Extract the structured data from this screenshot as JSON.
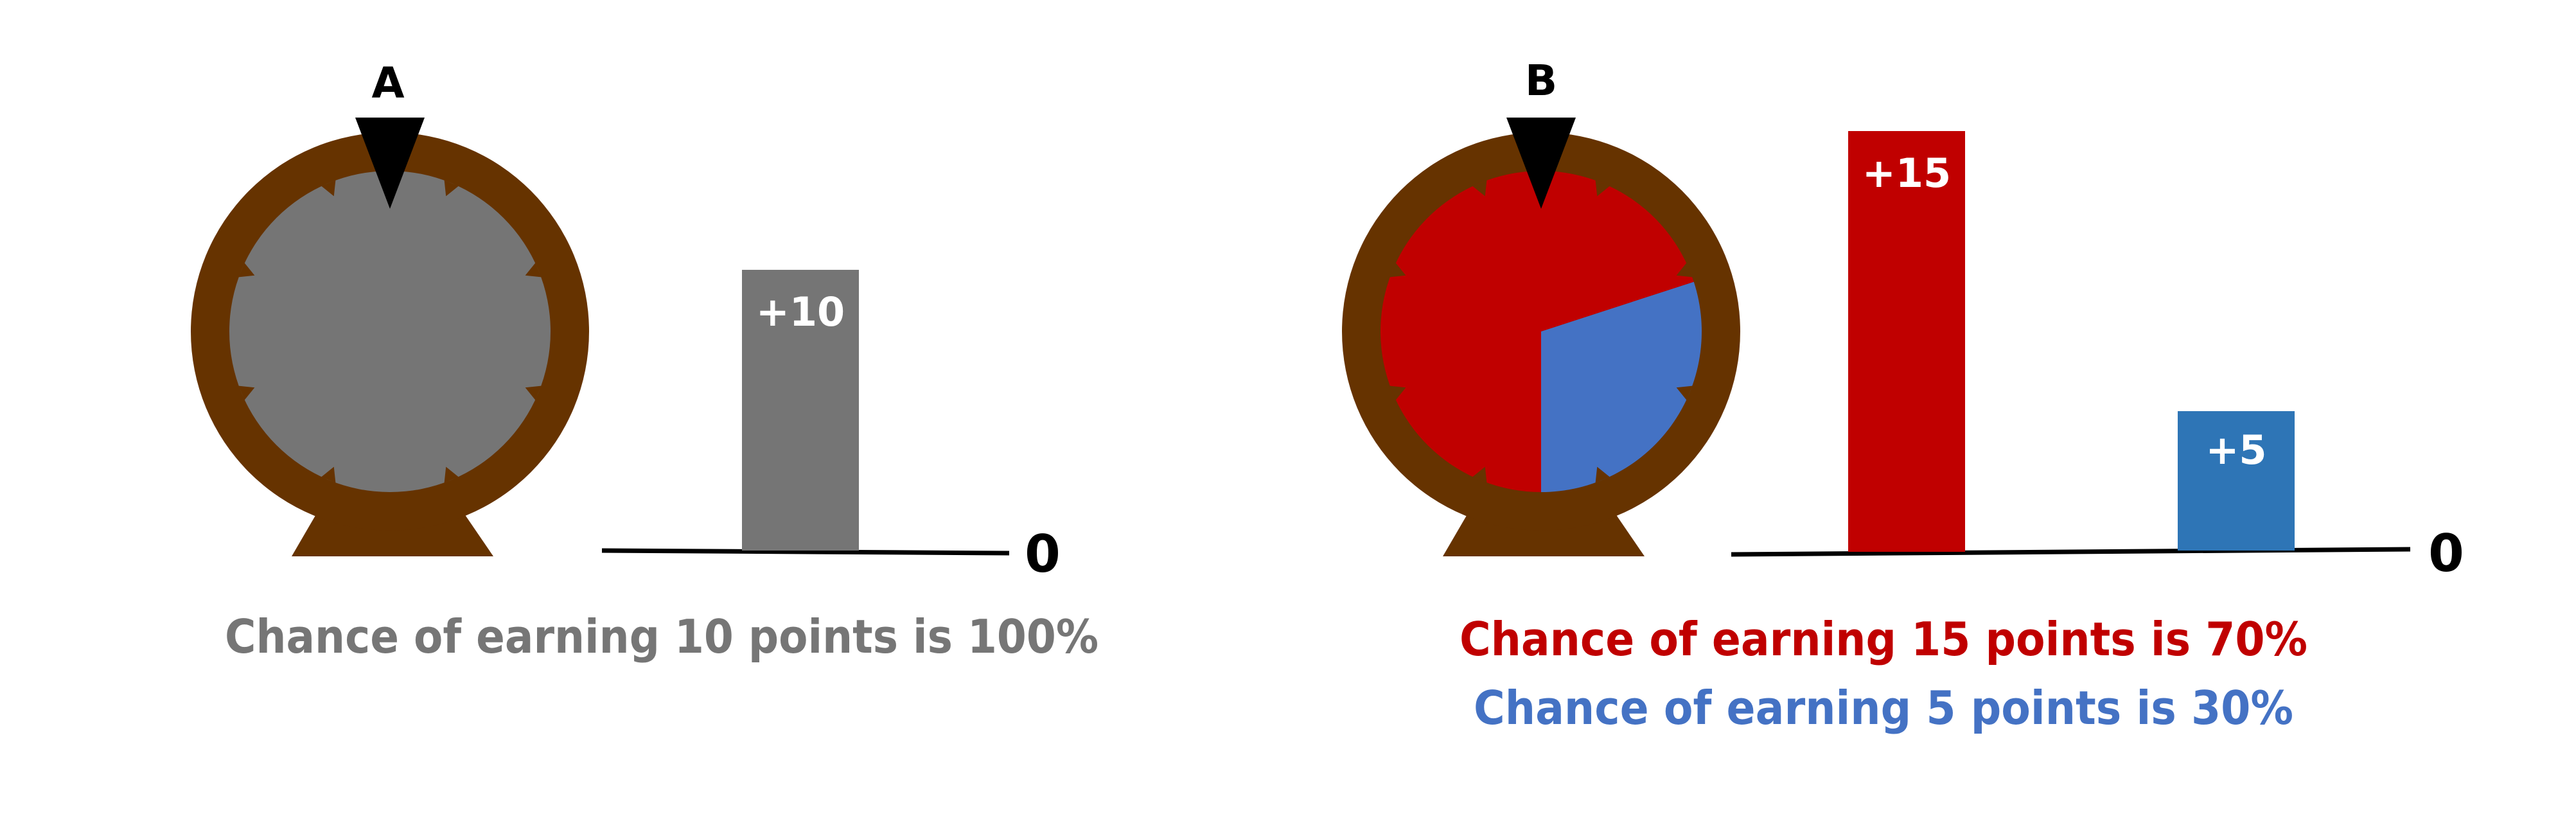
{
  "colors": {
    "wheel_rim": "#663300",
    "pointer": "#000000",
    "gray": "#757575",
    "red": "#C00000",
    "blue_wheel": "#4472C4",
    "blue_bar": "#2E75B6",
    "blue_text": "#4472C4",
    "gray_text": "#767676",
    "white": "#FFFFFF",
    "black": "#000000"
  },
  "option_a": {
    "label": "A",
    "zero_label": "0",
    "bar_label": "+10",
    "points": 10,
    "probability_percent": 100,
    "wheel_color": "gray",
    "caption": "Chance of earning 10 points is 100%"
  },
  "option_b": {
    "label": "B",
    "zero_label": "0",
    "outcomes": [
      {
        "bar_label": "+15",
        "points": 15,
        "probability_percent": 70,
        "color": "red"
      },
      {
        "bar_label": "+5",
        "points": 5,
        "probability_percent": 30,
        "color": "blue"
      }
    ],
    "caption_1": "Chance of earning 15 points is 70%",
    "caption_2": "Chance of earning 5 points is 30%"
  }
}
